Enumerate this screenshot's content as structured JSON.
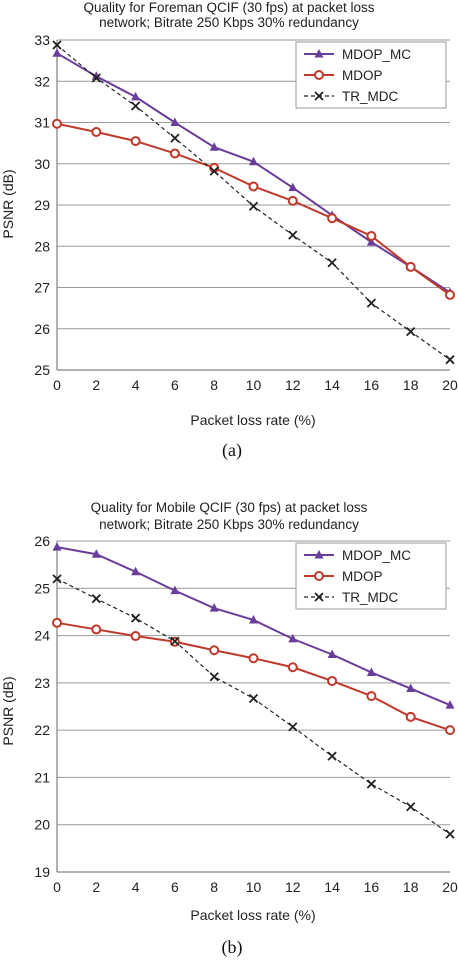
{
  "chart_data": [
    {
      "type": "line",
      "title_lines": [
        "Quality for Foreman QCIF (30 fps) at packet loss",
        "network; Bitrate 250 Kbps 30% redundancy"
      ],
      "xlabel": "Packet loss rate (%)",
      "ylabel": "PSNR (dB)",
      "caption": "(a)",
      "x": [
        0,
        2,
        4,
        6,
        8,
        10,
        12,
        14,
        16,
        18,
        20
      ],
      "xlim": [
        0,
        20
      ],
      "ylim": [
        25,
        33
      ],
      "yticks": [
        25,
        26,
        27,
        28,
        29,
        30,
        31,
        32,
        33
      ],
      "grid": true,
      "legend_position": "top-right",
      "series": [
        {
          "name": "MDOP_MC",
          "color": "#6a3d9a",
          "marker": "triangle",
          "values": [
            32.68,
            32.12,
            31.62,
            31.0,
            30.4,
            30.05,
            29.42,
            28.75,
            28.1,
            27.5,
            26.88
          ]
        },
        {
          "name": "MDOP",
          "color": "#c0392b",
          "marker": "circle",
          "values": [
            30.97,
            30.77,
            30.55,
            30.25,
            29.9,
            29.45,
            29.1,
            28.68,
            28.25,
            27.5,
            26.82
          ]
        },
        {
          "name": "TR_MDC",
          "color": "#222222",
          "marker": "x",
          "values": [
            32.88,
            32.08,
            31.4,
            30.62,
            29.82,
            28.97,
            28.27,
            27.6,
            26.62,
            25.93,
            25.25
          ]
        }
      ]
    },
    {
      "type": "line",
      "title_lines": [
        "Quality for Mobile QCIF (30 fps) at packet loss",
        "network; Bitrate 250 Kbps 30% redundancy"
      ],
      "xlabel": "Packet loss rate (%)",
      "ylabel": "PSNR (dB)",
      "caption": "(b)",
      "x": [
        0,
        2,
        4,
        6,
        8,
        10,
        12,
        14,
        16,
        18,
        20
      ],
      "xlim": [
        0,
        20
      ],
      "ylim": [
        19,
        26
      ],
      "yticks": [
        19,
        20,
        21,
        22,
        23,
        24,
        25,
        26
      ],
      "grid": true,
      "legend_position": "top-right",
      "series": [
        {
          "name": "MDOP_MC",
          "color": "#6a3d9a",
          "marker": "triangle",
          "values": [
            25.87,
            25.72,
            25.35,
            24.95,
            24.58,
            24.33,
            23.93,
            23.6,
            23.22,
            22.88,
            22.53
          ]
        },
        {
          "name": "MDOP",
          "color": "#c0392b",
          "marker": "circle",
          "values": [
            24.27,
            24.13,
            23.99,
            23.87,
            23.69,
            23.52,
            23.33,
            23.04,
            22.72,
            22.28,
            22.0
          ]
        },
        {
          "name": "TR_MDC",
          "color": "#222222",
          "marker": "x",
          "values": [
            25.2,
            24.78,
            24.37,
            23.88,
            23.13,
            22.67,
            22.07,
            21.45,
            20.86,
            20.38,
            19.8
          ]
        }
      ]
    }
  ]
}
